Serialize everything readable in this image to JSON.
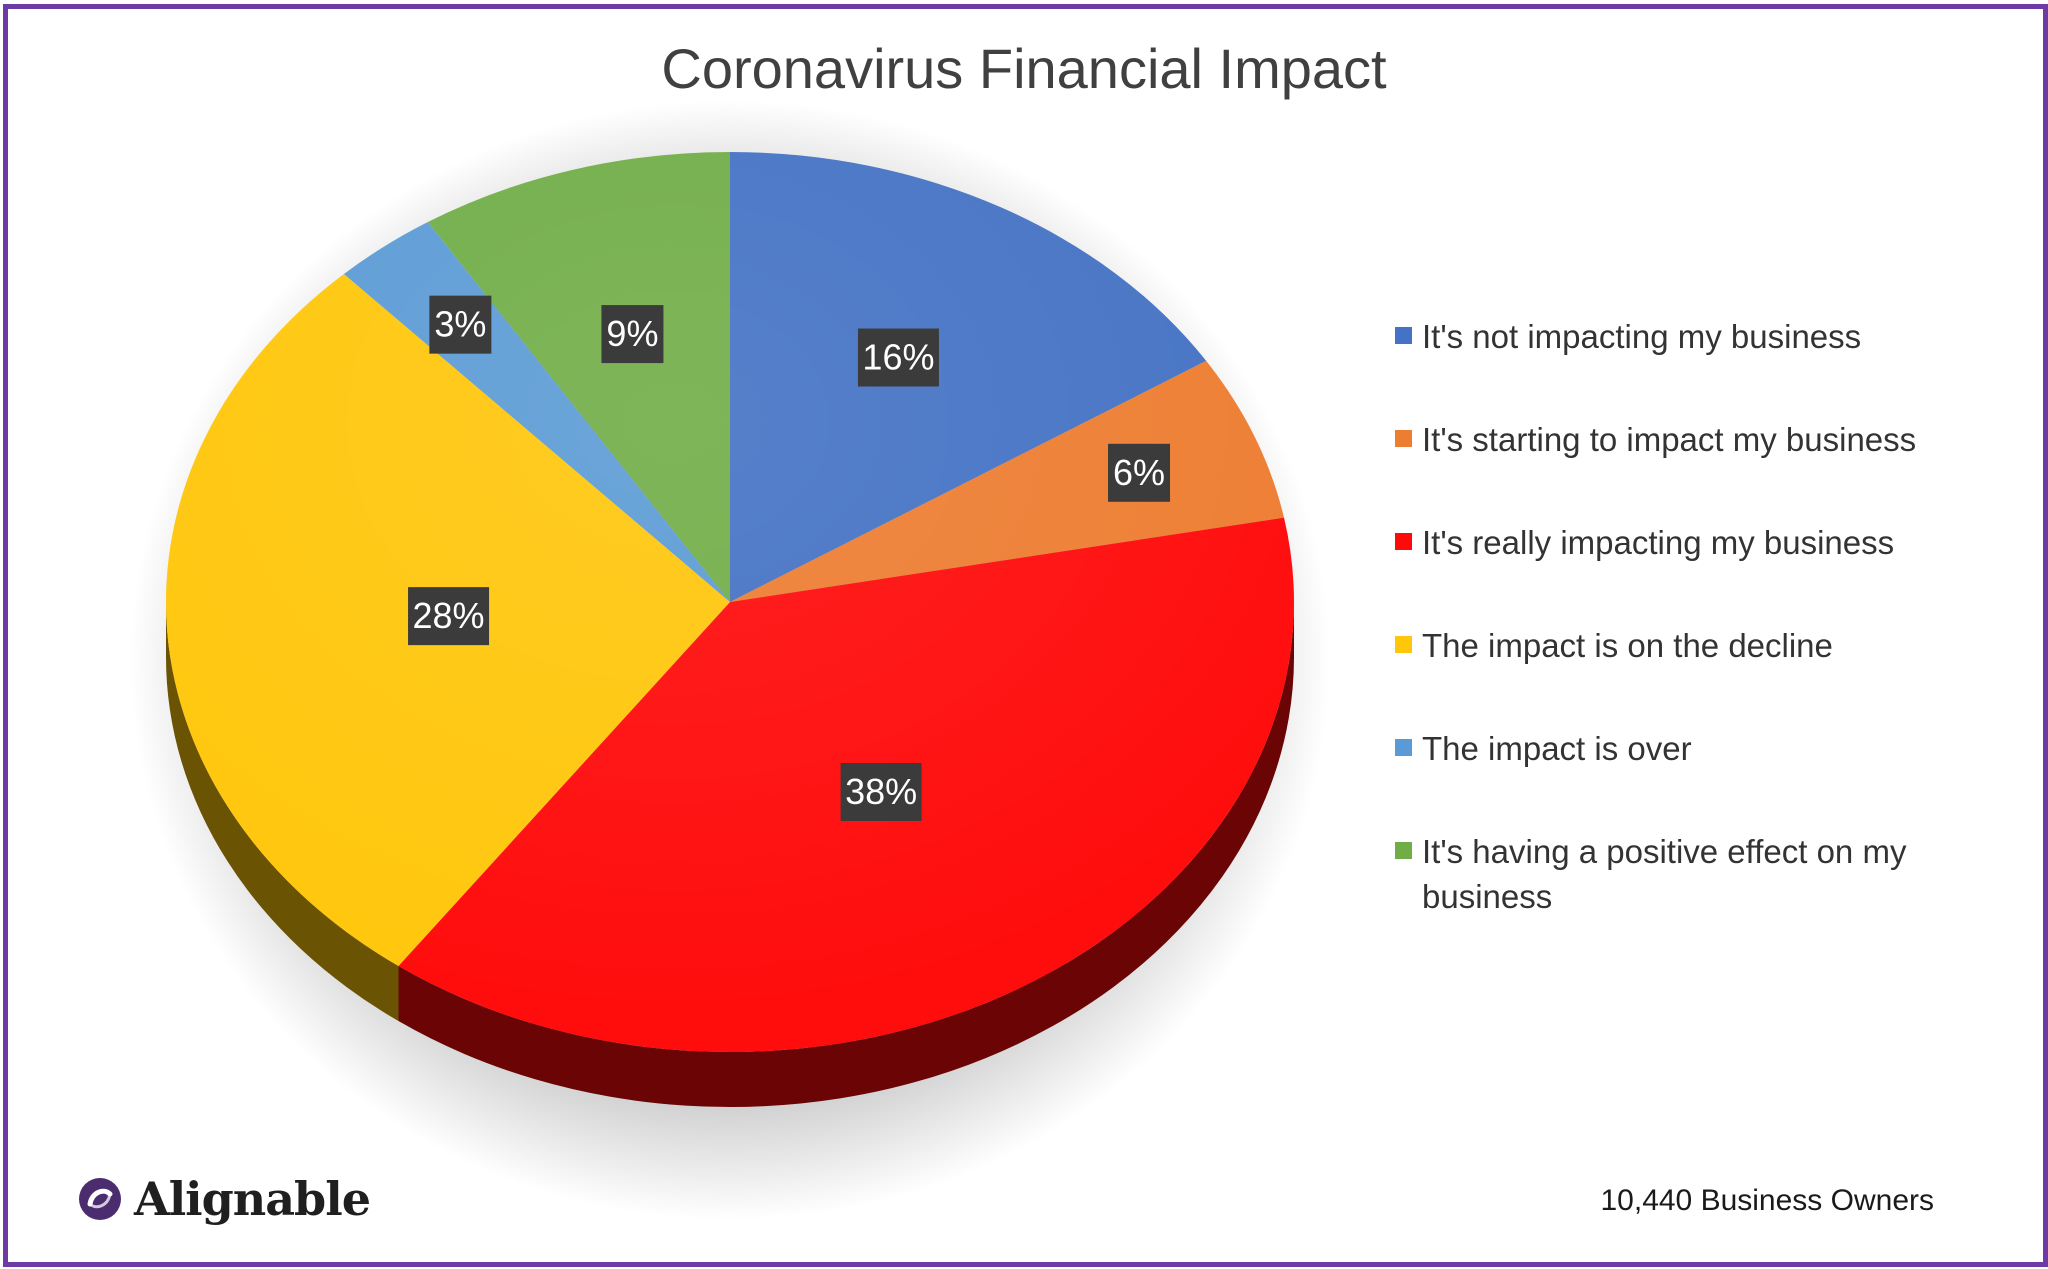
{
  "colors": {
    "border": "#6d3aa6",
    "label_box": "#3b3b3b"
  },
  "chart_data": {
    "type": "pie",
    "title": "Coronavirus Financial Impact",
    "legend_position": "right",
    "categories": [
      "It's not impacting my business",
      "It's starting to impact my business",
      "It's really impacting my business",
      "The impact is on the decline",
      "The impact is over",
      "It's having a positive effect on my business"
    ],
    "values": [
      16,
      6,
      38,
      28,
      3,
      9
    ],
    "labels": [
      "16%",
      "6%",
      "38%",
      "28%",
      "3%",
      "9%"
    ],
    "colors": [
      "#4472c4",
      "#ed7d31",
      "#ff0a0a",
      "#ffc60a",
      "#5b9bd5",
      "#70ad47"
    ]
  },
  "footer": {
    "logo_text": "Alignable",
    "logo_icon": "alignable-logo-icon",
    "note": "10,440 Business Owners"
  }
}
